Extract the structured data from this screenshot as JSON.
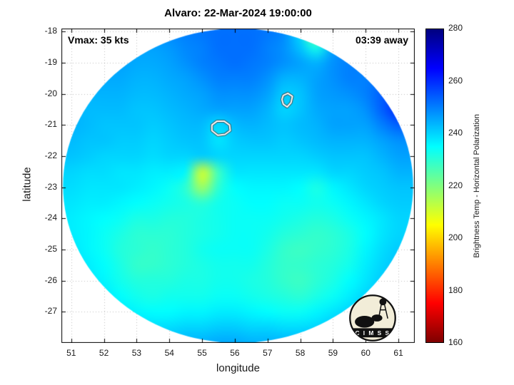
{
  "title": "Alvaro: 22-Mar-2024 19:00:00",
  "annotations": {
    "vmax": "Vmax: 35 kts",
    "eta": "03:39 away"
  },
  "axes": {
    "xlabel": "longitude",
    "ylabel": "latitude",
    "xticks": [
      51,
      52,
      53,
      54,
      55,
      56,
      57,
      58,
      59,
      60,
      61
    ],
    "yticks": [
      -18,
      -19,
      -20,
      -21,
      -22,
      -23,
      -24,
      -25,
      -26,
      -27
    ]
  },
  "colorbar": {
    "label": "Brightness Temp - Horizontal Polarization",
    "min": 160,
    "max": 280,
    "ticks": [
      160,
      180,
      200,
      220,
      240,
      260,
      280
    ]
  },
  "logo": {
    "text": "C I M S S"
  },
  "chart_data": {
    "type": "heatmap",
    "title": "Alvaro: 22-Mar-2024 19:00:00",
    "xlabel": "longitude",
    "ylabel": "latitude",
    "xlim": [
      50.7,
      61.5
    ],
    "ylim": [
      -28.0,
      -17.9
    ],
    "grid_on": true,
    "annotations": [
      "Vmax: 35 kts",
      "03:39 away"
    ],
    "colorbar_label": "Brightness Temp - Horizontal Polarization",
    "colorbar_range": [
      160,
      280
    ],
    "colormap_stops": [
      {
        "value": 160,
        "color": "#7f0000"
      },
      {
        "value": 175,
        "color": "#ff0000"
      },
      {
        "value": 205,
        "color": "#ffff00"
      },
      {
        "value": 235,
        "color": "#00ffff"
      },
      {
        "value": 265,
        "color": "#0000ff"
      },
      {
        "value": 280,
        "color": "#00007f"
      }
    ],
    "swath": {
      "center_lon": 56.1,
      "center_lat": -22.95,
      "radius_lon": 5.35,
      "radius_lat": 5.05
    },
    "grid": {
      "lon_start": 50.5,
      "lon_step": 0.5,
      "lat_start": -17.5,
      "lat_step": -0.5,
      "units": "K",
      "values": [
        [
          250,
          250,
          250,
          250,
          250,
          250,
          250,
          250,
          250,
          250,
          251,
          251,
          251,
          251,
          250,
          248,
          240,
          248,
          250,
          250,
          250,
          250,
          250
        ],
        [
          249,
          249,
          249,
          249,
          248,
          248,
          248,
          249,
          250,
          251,
          252,
          252,
          252,
          251,
          249,
          240,
          218,
          242,
          250,
          251,
          251,
          251,
          251
        ],
        [
          248,
          248,
          248,
          248,
          247,
          246,
          246,
          247,
          249,
          250,
          252,
          252,
          252,
          250,
          248,
          242,
          232,
          246,
          250,
          250,
          250,
          250,
          250
        ],
        [
          248,
          247,
          247,
          246,
          246,
          245,
          245,
          246,
          248,
          250,
          251,
          252,
          251,
          250,
          248,
          246,
          244,
          248,
          250,
          250,
          251,
          251,
          251
        ],
        [
          247,
          246,
          246,
          245,
          245,
          244,
          244,
          245,
          246,
          248,
          250,
          250,
          250,
          248,
          244,
          244,
          246,
          248,
          250,
          250,
          252,
          252,
          252
        ],
        [
          246,
          245,
          244,
          244,
          244,
          243,
          243,
          244,
          245,
          246,
          248,
          248,
          248,
          246,
          241,
          242,
          246,
          247,
          248,
          250,
          254,
          256,
          256
        ],
        [
          245,
          244,
          243,
          243,
          243,
          242,
          242,
          243,
          244,
          245,
          246,
          246,
          246,
          244,
          240,
          242,
          245,
          246,
          246,
          248,
          254,
          260,
          258
        ],
        [
          244,
          244,
          243,
          242,
          242,
          242,
          241,
          242,
          243,
          243,
          239,
          243,
          244,
          243,
          242,
          243,
          244,
          246,
          246,
          246,
          250,
          254,
          254
        ],
        [
          243,
          243,
          242,
          242,
          241,
          241,
          240,
          241,
          242,
          242,
          238,
          241,
          242,
          242,
          241,
          242,
          243,
          244,
          244,
          244,
          246,
          248,
          248
        ],
        [
          242,
          242,
          241,
          240,
          240,
          240,
          239,
          240,
          240,
          241,
          240,
          240,
          240,
          240,
          240,
          240,
          241,
          242,
          242,
          242,
          244,
          246,
          246
        ],
        [
          240,
          240,
          239,
          239,
          238,
          238,
          237,
          237,
          236,
          210,
          228,
          238,
          238,
          238,
          238,
          238,
          238,
          240,
          240,
          241,
          242,
          244,
          244
        ],
        [
          239,
          239,
          238,
          238,
          238,
          237,
          236,
          234,
          230,
          216,
          230,
          235,
          236,
          236,
          236,
          235,
          232,
          236,
          238,
          240,
          241,
          242,
          242
        ],
        [
          238,
          238,
          237,
          237,
          236,
          235,
          234,
          233,
          232,
          230,
          233,
          234,
          235,
          235,
          234,
          234,
          233,
          234,
          236,
          238,
          240,
          241,
          241
        ],
        [
          238,
          237,
          236,
          235,
          234,
          232,
          232,
          231,
          231,
          232,
          233,
          234,
          234,
          234,
          233,
          232,
          231,
          232,
          234,
          236,
          238,
          240,
          240
        ],
        [
          238,
          237,
          236,
          234,
          232,
          230,
          230,
          230,
          231,
          232,
          233,
          234,
          234,
          233,
          231,
          230,
          229,
          230,
          232,
          235,
          238,
          240,
          240
        ],
        [
          239,
          238,
          236,
          234,
          231,
          230,
          229,
          230,
          231,
          233,
          234,
          234,
          234,
          232,
          229,
          228,
          229,
          230,
          232,
          236,
          239,
          241,
          241
        ],
        [
          240,
          239,
          237,
          235,
          232,
          229,
          229,
          230,
          231,
          232,
          233,
          233,
          233,
          231,
          229,
          229,
          230,
          231,
          233,
          237,
          240,
          242,
          242
        ],
        [
          241,
          240,
          238,
          236,
          233,
          231,
          231,
          231,
          232,
          232,
          233,
          233,
          232,
          231,
          229,
          228,
          230,
          232,
          235,
          238,
          241,
          242,
          242
        ],
        [
          242,
          241,
          240,
          238,
          235,
          233,
          232,
          233,
          233,
          233,
          234,
          234,
          233,
          232,
          231,
          230,
          232,
          234,
          237,
          240,
          242,
          243,
          243
        ],
        [
          243,
          242,
          241,
          240,
          238,
          236,
          235,
          235,
          236,
          236,
          237,
          237,
          236,
          235,
          234,
          234,
          236,
          238,
          240,
          242,
          243,
          244,
          244
        ],
        [
          244,
          244,
          243,
          242,
          241,
          240,
          239,
          239,
          240,
          240,
          241,
          241,
          240,
          240,
          239,
          239,
          240,
          242,
          242,
          244,
          244,
          245,
          245
        ],
        [
          246,
          246,
          245,
          245,
          244,
          244,
          243,
          243,
          244,
          244,
          245,
          245,
          244,
          244,
          244,
          244,
          245,
          246,
          246,
          246,
          246,
          246,
          246
        ]
      ]
    },
    "contours": [
      {
        "name": "white-contour-1",
        "points": [
          [
            55.3,
            -21.0
          ],
          [
            55.45,
            -20.88
          ],
          [
            55.68,
            -20.88
          ],
          [
            55.84,
            -21.0
          ],
          [
            55.86,
            -21.18
          ],
          [
            55.7,
            -21.3
          ],
          [
            55.48,
            -21.33
          ],
          [
            55.3,
            -21.18
          ]
        ]
      },
      {
        "name": "white-contour-2",
        "points": [
          [
            57.48,
            -20.05
          ],
          [
            57.62,
            -19.98
          ],
          [
            57.76,
            -20.08
          ],
          [
            57.72,
            -20.28
          ],
          [
            57.6,
            -20.42
          ],
          [
            57.48,
            -20.33
          ],
          [
            57.44,
            -20.18
          ]
        ]
      }
    ]
  }
}
